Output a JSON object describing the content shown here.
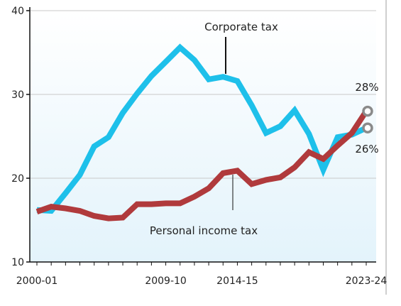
{
  "chart_data": {
    "type": "line",
    "title": "",
    "xlabel": "",
    "ylabel": "",
    "ylim": [
      10,
      40
    ],
    "yticks": [
      10,
      20,
      30,
      40
    ],
    "x": [
      "2000-01",
      "2001-02",
      "2002-03",
      "2003-04",
      "2004-05",
      "2005-06",
      "2006-07",
      "2007-08",
      "2008-09",
      "2009-10",
      "2010-11",
      "2011-12",
      "2012-13",
      "2013-14",
      "2014-15",
      "2015-16",
      "2016-17",
      "2017-18",
      "2018-19",
      "2019-20",
      "2020-21",
      "2021-22",
      "2022-23",
      "2023-24"
    ],
    "x_tick_labels": [
      "2000-01",
      "2009-10",
      "2014-15",
      "2023-24"
    ],
    "grid": "horizontal",
    "series": [
      {
        "name": "Corporate tax",
        "color": "#1ec0ea",
        "values": [
          16.2,
          16.1,
          18.2,
          20.4,
          23.8,
          24.9,
          27.8,
          30.1,
          32.2,
          33.9,
          35.6,
          34.1,
          31.8,
          32.1,
          31.6,
          28.7,
          25.4,
          26.2,
          28.1,
          25.3,
          21.0,
          24.9,
          25.2,
          26.0
        ]
      },
      {
        "name": "Personal income tax",
        "color": "#b03a3c",
        "values": [
          16.0,
          16.6,
          16.4,
          16.1,
          15.5,
          15.2,
          15.3,
          16.9,
          16.9,
          17.0,
          17.0,
          17.8,
          18.8,
          20.6,
          20.9,
          19.3,
          19.8,
          20.1,
          21.3,
          23.1,
          22.3,
          23.9,
          25.4,
          28.0
        ]
      }
    ],
    "annotations": {
      "corporate_label": "Corporate tax",
      "personal_label": "Personal income tax",
      "end_label_personal": "28%",
      "end_label_corporate": "26%"
    }
  }
}
